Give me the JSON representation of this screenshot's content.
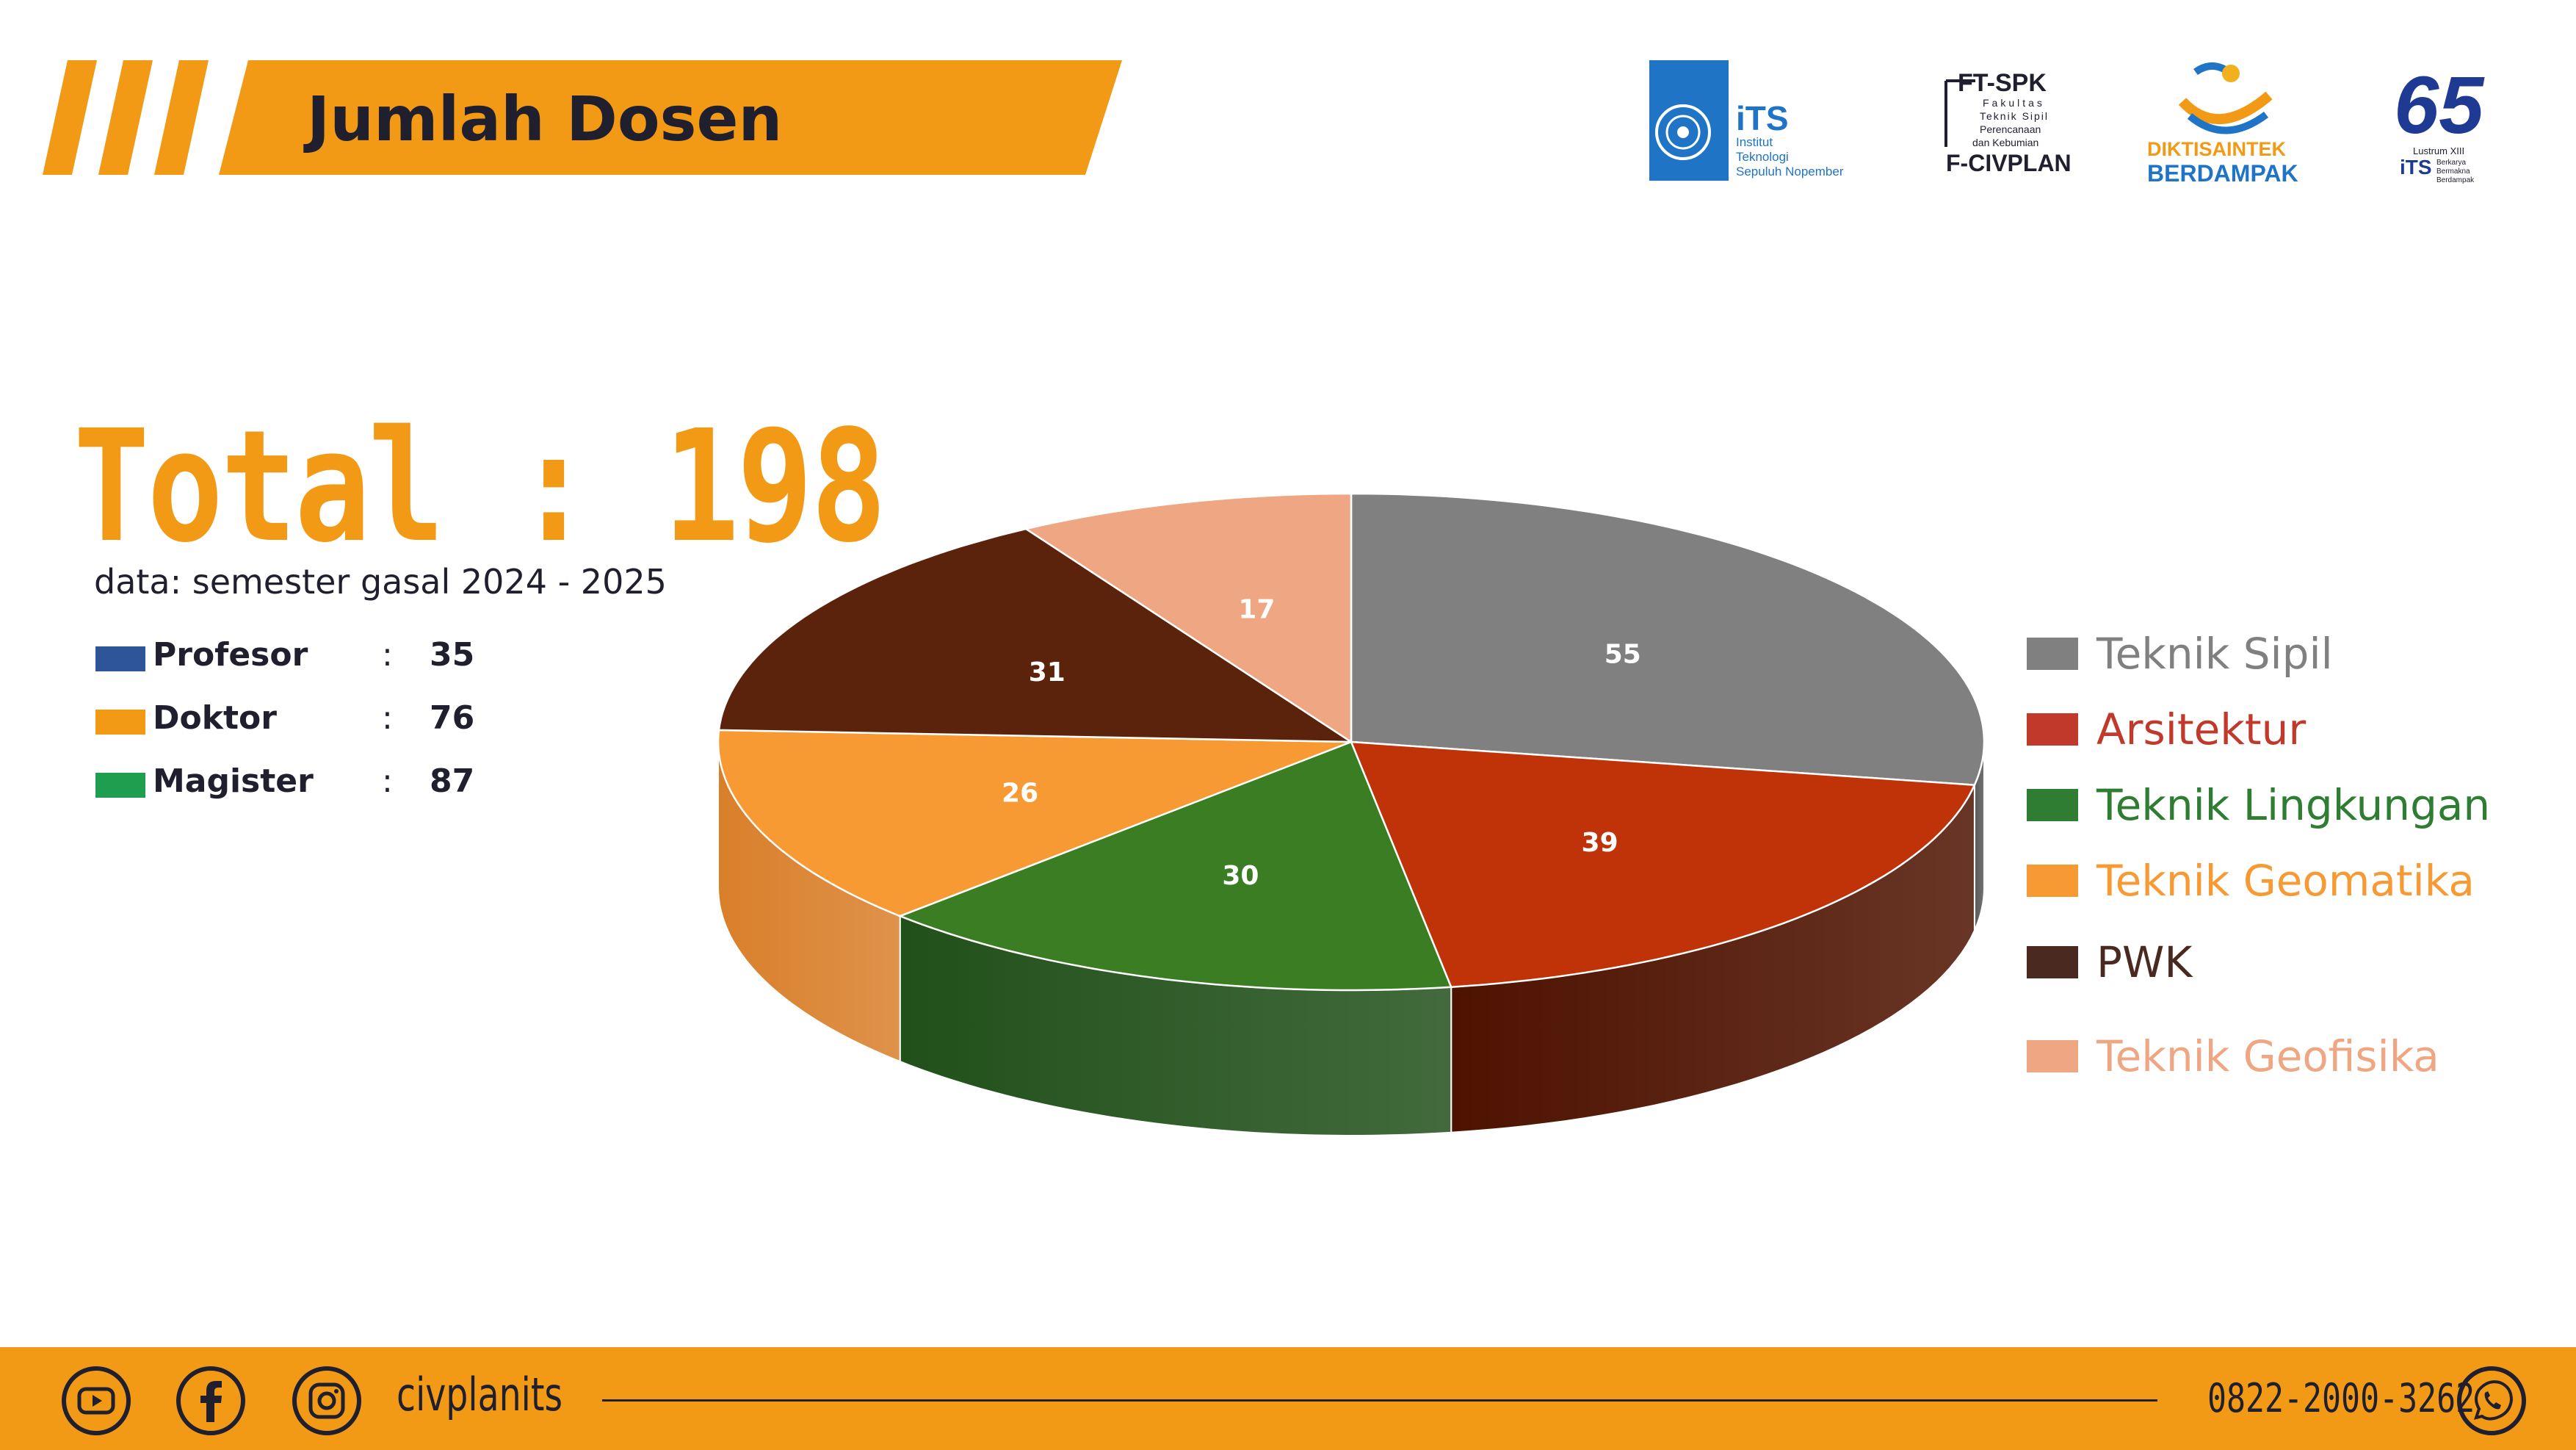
{
  "header": {
    "title": "Jumlah Dosen",
    "accent_color": "#f29a16"
  },
  "logos": {
    "its": {
      "name": "iTS",
      "line1": "Institut",
      "line2": "Teknologi",
      "line3": "Sepuluh Nopember"
    },
    "ftspk": {
      "name": "FT-SPK",
      "line1": "Fakultas",
      "line2": "Teknik Sipil",
      "line3": "Perencanaan",
      "line4": "dan Kebumian",
      "sub": "F-CIVPLAN"
    },
    "diktisaintek": {
      "line1": "DIKTISAINTEK",
      "line2": "BERDAMPAK"
    },
    "lustrum": {
      "number": "65",
      "line1": "Lustrum XIII",
      "name": "iTS",
      "line2": "Berkarya",
      "line3": "Bermakna",
      "line4": "Berdampak"
    }
  },
  "summary": {
    "total_text": "Total : 198",
    "subtitle": "data: semester gasal 2024 - 2025",
    "degrees": [
      {
        "name": "Profesor",
        "value": "35",
        "color": "#2e5597"
      },
      {
        "name": "Doktor",
        "value": "76",
        "color": "#f29a16"
      },
      {
        "name": "Magister",
        "value": "87",
        "color": "#1f9e50"
      }
    ]
  },
  "chart_data": {
    "type": "pie",
    "title": "",
    "start_angle_deg": 90,
    "categories": [
      "Teknik Sipil",
      "Arsitektur",
      "Teknik Lingkungan",
      "Teknik Geomatika",
      "PWK",
      "Teknik Geofisika"
    ],
    "values": [
      55,
      39,
      30,
      26,
      31,
      17
    ],
    "colors": [
      "#808080",
      "#c03208",
      "#3b7d23",
      "#f79a34",
      "#5c230c",
      "#efa682"
    ],
    "side_colors": [
      "#5a5a5a",
      "#4e1200",
      "#21501a",
      "#d97f2a",
      "#3a1306",
      "#c98866"
    ],
    "legend_colors": [
      "#808080",
      "#c0392b",
      "#2e7d32",
      "#f79a34",
      "#4a2a20",
      "#efa682"
    ],
    "label_color": "#ffffff",
    "legend_position": "right"
  },
  "footer": {
    "handle": "civplanits",
    "phone": "0822-2000-3262",
    "icons": [
      "youtube-icon",
      "facebook-icon",
      "instagram-icon",
      "whatsapp-icon"
    ]
  }
}
